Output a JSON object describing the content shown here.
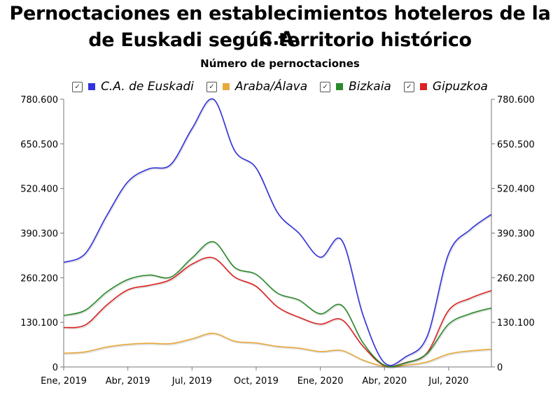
{
  "chart_data": {
    "type": "line",
    "title_line1": "Pernoctaciones en establecimientos hoteleros de la C.A.",
    "title_line2": "de Euskadi según territorio histórico",
    "subtitle": "Número de pernoctaciones",
    "check_glyph": "✓",
    "x_ticks": [
      "Ene, 2019",
      "Abr, 2019",
      "Jul, 2019",
      "Oct, 2019",
      "Ene, 2020",
      "Abr, 2020",
      "Jul, 2020"
    ],
    "x_tick_index": [
      0,
      3,
      6,
      9,
      12,
      15,
      18
    ],
    "y_ticks": [
      0,
      130100,
      260200,
      390300,
      520400,
      650500,
      780600
    ],
    "y_tick_labels": [
      "0",
      "130.100",
      "260.200",
      "390.300",
      "520.400",
      "650.500",
      "780.600"
    ],
    "ylim": [
      0,
      780600
    ],
    "x_count": 21,
    "series": [
      {
        "name": "C.A. de Euskadi",
        "color": "#3333dd",
        "values": [
          305000,
          330000,
          440000,
          540000,
          578000,
          590000,
          695000,
          780600,
          630000,
          580000,
          450000,
          390000,
          320000,
          370000,
          150000,
          12000,
          30000,
          90000,
          330000,
          400000,
          445000
        ]
      },
      {
        "name": "Araba/Álava",
        "color": "#e8a83a",
        "values": [
          40000,
          44000,
          58000,
          66000,
          69000,
          68000,
          82000,
          98000,
          75000,
          70000,
          60000,
          55000,
          45000,
          48000,
          20000,
          2000,
          5000,
          15000,
          38000,
          47000,
          52000
        ]
      },
      {
        "name": "Bizkaia",
        "color": "#2a8a2a",
        "values": [
          150000,
          165000,
          218000,
          255000,
          268000,
          262000,
          318000,
          365000,
          290000,
          270000,
          215000,
          195000,
          155000,
          180000,
          70000,
          5000,
          12000,
          40000,
          125000,
          155000,
          172000
        ]
      },
      {
        "name": "Gipuzkoa",
        "color": "#dd2222",
        "values": [
          115000,
          122000,
          180000,
          225000,
          238000,
          255000,
          300000,
          318000,
          262000,
          235000,
          175000,
          145000,
          125000,
          138000,
          60000,
          4000,
          13000,
          42000,
          165000,
          200000,
          223000
        ]
      }
    ]
  }
}
